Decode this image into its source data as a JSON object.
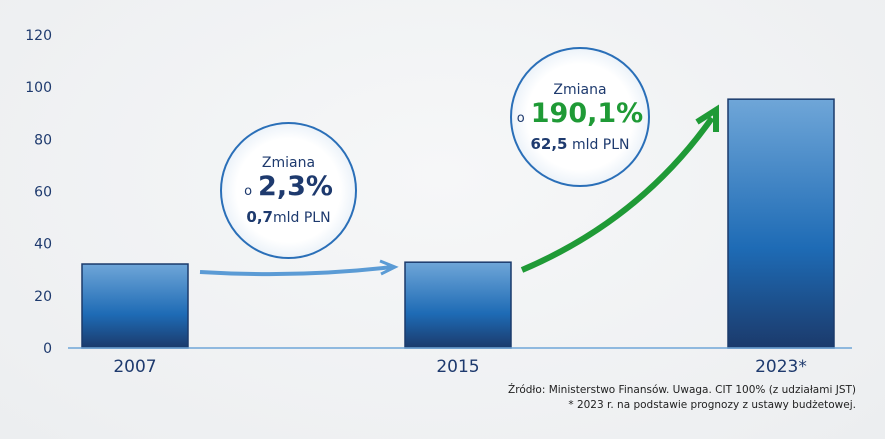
{
  "chart_data": {
    "type": "bar",
    "categories": [
      "2007",
      "2015",
      "2023*"
    ],
    "values": [
      32.2,
      32.9,
      95.4
    ],
    "ylim": [
      0,
      120
    ],
    "yticks": [
      0,
      20,
      40,
      60,
      80,
      100,
      120
    ],
    "grid": false,
    "colors": {
      "bar_top": "#6fa6d8",
      "bar_mid": "#1e6bb5",
      "bar_bottom": "#1b3a6b",
      "axis": "#6fa6d8",
      "arrow_blue": "#5b9bd5",
      "arrow_green": "#1f9a36"
    },
    "annotations": [
      {
        "label": "Zmiana",
        "prefix": "o",
        "percent": "2,3%",
        "amount": "0,7",
        "unit": "mld PLN",
        "percent_color": "#1e3a6e"
      },
      {
        "label": "Zmiana",
        "prefix": "o",
        "percent": "190,1%",
        "amount": "62,5",
        "unit": "mld PLN",
        "percent_color": "#1f9a36"
      }
    ]
  },
  "footer": {
    "source": "Źródło: Ministerstwo Finansów. Uwaga. CIT 100% (z udziałami JST)",
    "note": "* 2023 r. na podstawie prognozy z ustawy budżetowej."
  }
}
